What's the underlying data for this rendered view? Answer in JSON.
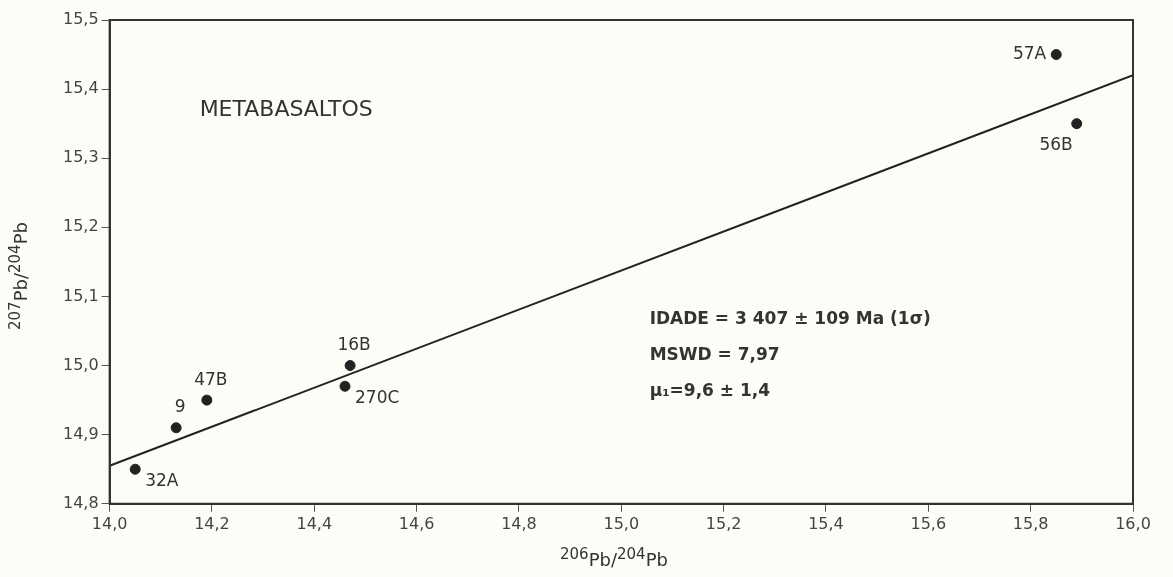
{
  "chart_data": {
    "type": "scatter",
    "xlabel": "$^{206}$Pb/$^{204}$Pb",
    "ylabel": "$^{207}$Pb/$^{204}$Pb",
    "xlim": [
      14.0,
      16.0
    ],
    "ylim": [
      14.8,
      15.5
    ],
    "xticks": [
      {
        "value": 14.0,
        "label": "14,0"
      },
      {
        "value": 14.2,
        "label": "14,2"
      },
      {
        "value": 14.4,
        "label": "14,4"
      },
      {
        "value": 14.6,
        "label": "14,6"
      },
      {
        "value": 14.8,
        "label": "14,8"
      },
      {
        "value": 15.0,
        "label": "15,0"
      },
      {
        "value": 15.2,
        "label": "15,2"
      },
      {
        "value": 15.4,
        "label": "15,4"
      },
      {
        "value": 15.6,
        "label": "15,6"
      },
      {
        "value": 15.8,
        "label": "15,8"
      },
      {
        "value": 16.0,
        "label": "16,0"
      }
    ],
    "yticks": [
      {
        "value": 14.8,
        "label": "14,8"
      },
      {
        "value": 14.9,
        "label": "14,9"
      },
      {
        "value": 15.0,
        "label": "15,0"
      },
      {
        "value": 15.1,
        "label": "15,1"
      },
      {
        "value": 15.2,
        "label": "15,2"
      },
      {
        "value": 15.3,
        "label": "15,3"
      },
      {
        "value": 15.4,
        "label": "15,4"
      },
      {
        "value": 15.5,
        "label": "15,5"
      }
    ],
    "grid": false,
    "legend": false,
    "series": [
      {
        "color": "#222222",
        "marker": "circle",
        "x": [
          14.05,
          14.13,
          14.19,
          14.46,
          14.47,
          15.85,
          15.89
        ],
        "values": [
          14.85,
          14.91,
          14.95,
          14.97,
          15.0,
          15.45,
          15.35
        ]
      },
      {
        "type": "line",
        "color": "#222222",
        "marker": "none",
        "line_style": "solid",
        "x": [
          14.0,
          16.0
        ],
        "values": [
          14.855,
          15.42
        ]
      }
    ],
    "annotations": [
      "METABASALTOS",
      {
        "text": "32A",
        "x": 14.05,
        "y": 14.85
      },
      {
        "text": "9",
        "x": 14.13,
        "y": 14.91
      },
      {
        "text": "47B",
        "x": 14.19,
        "y": 14.95
      },
      {
        "text": "270C",
        "x": 14.46,
        "y": 14.97
      },
      {
        "text": "16B",
        "x": 14.47,
        "y": 15.0
      },
      {
        "text": "57A",
        "x": 15.85,
        "y": 15.45
      },
      {
        "text": "56B",
        "x": 15.89,
        "y": 15.35
      },
      "IDADE = 3 407 ± 109 Ma (1σ)",
      "MSWD = 7,97",
      "μ₁=9,6 ± 1,4"
    ]
  }
}
